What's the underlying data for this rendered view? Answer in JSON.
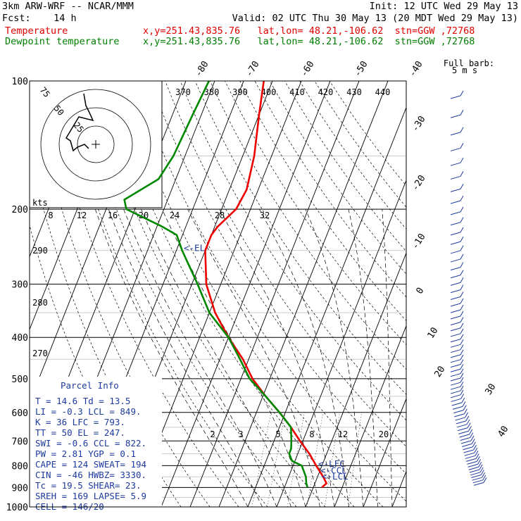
{
  "header": {
    "line1_left": "3km ARW-WRF -- NCAR/MMM",
    "line1_right": "Init: 12 UTC Wed 29 May 13",
    "line2_left": "Fcst:    14 h",
    "line2_right": "Valid: 02 UTC Thu 30 May 13 (20 MDT Wed 29 May 13)",
    "temp_label": "Temperature",
    "temp_info": "x,y=251.43,835.76   lat,lon= 48.21,-106.62  stn=GGW ,72768",
    "dewp_label": "Dewpoint temperature",
    "dewp_info": "x,y=251.43,835.76   lat,lon= 48.21,-106.62  stn=GGW ,72768"
  },
  "colors": {
    "temperature": "#ee0000",
    "dewpoint": "#008800",
    "labels": "#1e3a9e",
    "grid": "#000000"
  },
  "chart_data": {
    "type": "line",
    "chart_kind": "skew-T log-p sounding",
    "y_axis": {
      "label": "Pressure (hPa)",
      "scale": "log",
      "ticks": [
        100,
        200,
        300,
        400,
        500,
        600,
        700,
        800,
        900,
        1000
      ]
    },
    "temp_isotherm_labels_top": [
      "-80",
      "-70",
      "-60",
      "-50",
      "-40"
    ],
    "temp_isotherm_labels_right": [
      "-30",
      "-20",
      "-10",
      "0",
      "10",
      "20",
      "30",
      "40"
    ],
    "dry_adiabat_labels_top": [
      "370",
      "380",
      "390",
      "400",
      "410",
      "420",
      "430",
      "440"
    ],
    "dry_adiabat_labels_left": [
      "290",
      "280",
      "270"
    ],
    "mixing_ratio_labels_200": [
      "8",
      "12",
      "16",
      "20",
      "24",
      "28",
      "32"
    ],
    "mixing_ratio_labels_700": [
      "2",
      "3",
      "5",
      "8",
      "12",
      "20"
    ],
    "series": [
      {
        "name": "Temperature",
        "values": [
          [
            100,
            -63
          ],
          [
            120,
            -60
          ],
          [
            150,
            -56
          ],
          [
            180,
            -54
          ],
          [
            200,
            -55
          ],
          [
            220,
            -59
          ],
          [
            230,
            -60
          ],
          [
            250,
            -60
          ],
          [
            300,
            -55
          ],
          [
            350,
            -48
          ],
          [
            400,
            -40
          ],
          [
            450,
            -32
          ],
          [
            500,
            -26
          ],
          [
            550,
            -19
          ],
          [
            600,
            -12
          ],
          [
            650,
            -6
          ],
          [
            700,
            -1
          ],
          [
            750,
            4
          ],
          [
            800,
            8
          ],
          [
            850,
            12
          ],
          [
            880,
            14
          ],
          [
            900,
            13
          ]
        ]
      },
      {
        "name": "Dewpoint temperature",
        "values": [
          [
            100,
            -82
          ],
          [
            120,
            -83
          ],
          [
            150,
            -84
          ],
          [
            170,
            -86
          ],
          [
            190,
            -95
          ],
          [
            200,
            -93
          ],
          [
            220,
            -78
          ],
          [
            230,
            -72
          ],
          [
            250,
            -68
          ],
          [
            300,
            -58
          ],
          [
            350,
            -50
          ],
          [
            400,
            -40
          ],
          [
            450,
            -33
          ],
          [
            500,
            -27
          ],
          [
            550,
            -19
          ],
          [
            600,
            -12
          ],
          [
            650,
            -6
          ],
          [
            700,
            -4
          ],
          [
            730,
            -3
          ],
          [
            750,
            -3
          ],
          [
            780,
            -1
          ],
          [
            800,
            3
          ],
          [
            850,
            6
          ],
          [
            880,
            7
          ],
          [
            900,
            8
          ]
        ]
      }
    ],
    "levels": [
      {
        "label": "<-EL",
        "p": 247
      },
      {
        "label": "<-LFC",
        "p": 793
      },
      {
        "label": "<-CCL",
        "p": 822
      },
      {
        "label": "<-LCL",
        "p": 849
      }
    ]
  },
  "hodograph": {
    "ring_labels": [
      "75",
      "50",
      "25"
    ],
    "kts_label": "kts"
  },
  "parcel_info": {
    "title": "Parcel Info",
    "rows": [
      "T  =   14.6 Td =  13.5",
      "LI =   -0.3 LCL =  849.",
      "K  =     36 LFC =  793.",
      "TT =     50 EL  =  247.",
      "SWI =  -0.6 CCL =  822.",
      "PW =   2.81 YGP =   0.1",
      "CAPE =  124 SWEAT=  194",
      "CIN =   -46 HWBZ= 3330.",
      "Tc =   19.5 SHEAR=  23.",
      "SREH =  169 LAPSE=  5.9",
      "CELL = 146/20"
    ]
  },
  "wind_key": {
    "title": "Full barb:",
    "value": "5 m s"
  }
}
